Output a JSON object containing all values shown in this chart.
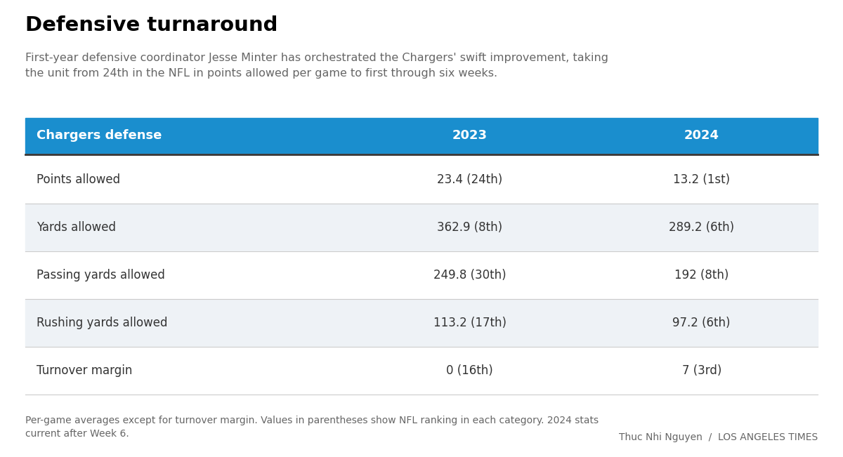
{
  "title": "Defensive turnaround",
  "subtitle": "First-year defensive coordinator Jesse Minter has orchestrated the Chargers' swift improvement, taking\nthe unit from 24th in the NFL in points allowed per game to first through six weeks.",
  "header": [
    "Chargers defense",
    "2023",
    "2024"
  ],
  "rows": [
    [
      "Points allowed",
      "23.4 (24th)",
      "13.2 (1st)"
    ],
    [
      "Yards allowed",
      "362.9 (8th)",
      "289.2 (6th)"
    ],
    [
      "Passing yards allowed",
      "249.8 (30th)",
      "192 (8th)"
    ],
    [
      "Rushing yards allowed",
      "113.2 (17th)",
      "97.2 (6th)"
    ],
    [
      "Turnover margin",
      "0 (16th)",
      "7 (3rd)"
    ]
  ],
  "footer": "Per-game averages except for turnover margin. Values in parentheses show NFL ranking in each category. 2024 stats\ncurrent after Week 6.",
  "credit": "Thuc Nhi Nguyen  /  LOS ANGELES TIMES",
  "header_bg_color": "#1a8ece",
  "header_text_color": "#ffffff",
  "row_bg_even": "#eef2f6",
  "row_bg_odd": "#ffffff",
  "title_color": "#000000",
  "subtitle_color": "#666666",
  "footer_color": "#666666",
  "credit_color": "#666666",
  "table_text_color": "#333333",
  "fig_width": 12.0,
  "fig_height": 6.51,
  "dpi": 100
}
